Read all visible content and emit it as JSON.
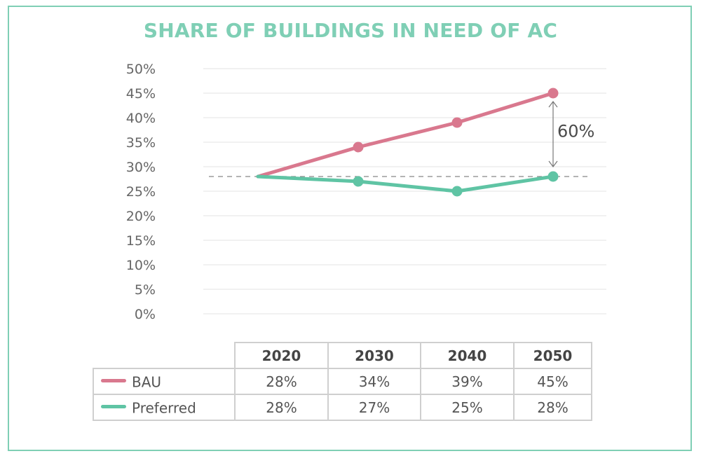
{
  "title": "SHARE OF BUILDINGS IN NEED OF AC",
  "colors": {
    "title": "#7fcfb5",
    "frame": "#7fcfb5",
    "bau": "#d9788e",
    "preferred": "#5fc4a4",
    "grid": "#e3e3e3",
    "reference": "#888888"
  },
  "chart_data": {
    "type": "line",
    "title": "SHARE OF BUILDINGS IN NEED OF AC",
    "xlabel": "",
    "ylabel": "",
    "categories": [
      "2020",
      "2030",
      "2040",
      "2050"
    ],
    "ylim": [
      0,
      50
    ],
    "yticks": [
      "0%",
      "5%",
      "10%",
      "15%",
      "20%",
      "25%",
      "30%",
      "35%",
      "40%",
      "45%",
      "50%"
    ],
    "ytick_values": [
      0,
      5,
      10,
      15,
      20,
      25,
      30,
      35,
      40,
      45,
      50
    ],
    "grid": true,
    "series": [
      {
        "name": "BAU",
        "values": [
          28,
          34,
          39,
          45
        ]
      },
      {
        "name": "Preferred",
        "values": [
          28,
          27,
          25,
          28
        ]
      }
    ],
    "reference_line": {
      "value": 28,
      "style": "dashed"
    },
    "annotation": {
      "label": "60%",
      "from_value": 45,
      "to_value": 28,
      "category": "2050"
    }
  },
  "table": {
    "headers": [
      "2020",
      "2030",
      "2040",
      "2050"
    ],
    "rows": [
      {
        "name": "BAU",
        "values": [
          "28%",
          "34%",
          "39%",
          "45%"
        ]
      },
      {
        "name": "Preferred",
        "values": [
          "28%",
          "27%",
          "25%",
          "28%"
        ]
      }
    ]
  }
}
